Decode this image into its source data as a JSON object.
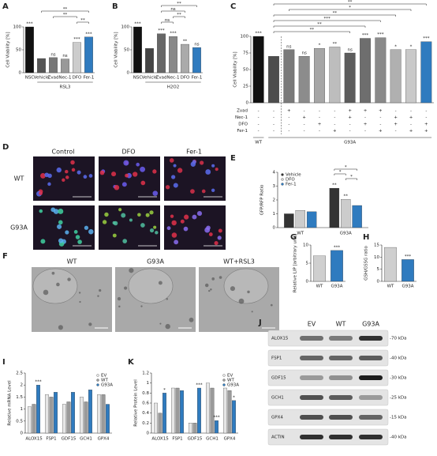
{
  "chart_data": [
    {
      "type": "bar",
      "panel": "A",
      "ylabel": "Cell Viability [%]",
      "categories": [
        "NSC",
        "Vehicle",
        "Zvad",
        "Nec-1",
        "DFO",
        "Fer-1"
      ],
      "values": [
        100,
        31,
        33,
        30,
        66,
        78
      ],
      "colors": [
        "#111111",
        "#555555",
        "#777777",
        "#999999",
        "#cccccc",
        "#2f7bbf"
      ],
      "sig": [
        "***",
        null,
        "ns",
        "ns",
        "***",
        "***"
      ],
      "ylim": [
        0,
        100
      ],
      "yticks": [
        0,
        50,
        100
      ],
      "group_labels": [
        {
          "label": "RSL3",
          "span": [
            1,
            5
          ]
        }
      ],
      "comparisons": [
        {
          "pair": [
            4,
            5
          ],
          "label": "**"
        },
        {
          "pair": [
            2,
            4
          ],
          "label": "**"
        },
        {
          "pair": [
            1,
            5
          ],
          "label": "**"
        }
      ]
    },
    {
      "type": "bar",
      "panel": "B",
      "ylabel": "Cell Viability [%]",
      "categories": [
        "NSC",
        "Vehicle",
        "Zvad",
        "Nec-1",
        "DFO",
        "Fer-1"
      ],
      "values": [
        100,
        53,
        85,
        79,
        62,
        55
      ],
      "colors": [
        "#111111",
        "#444444",
        "#666666",
        "#888888",
        "#aaaaaa",
        "#2f7bbf"
      ],
      "sig": [
        "***",
        null,
        "***",
        "***",
        "**",
        "ns"
      ],
      "ylim": [
        0,
        100
      ],
      "yticks": [
        0,
        50,
        100
      ],
      "group_labels": [
        {
          "label": "H2O2",
          "span": [
            1,
            5
          ]
        }
      ],
      "comparisons": [
        {
          "pair": [
            2,
            3
          ],
          "label": "ns"
        },
        {
          "pair": [
            3,
            4
          ],
          "label": "**"
        },
        {
          "pair": [
            2,
            4
          ],
          "label": "ns"
        },
        {
          "pair": [
            2,
            5
          ],
          "label": "**"
        }
      ]
    },
    {
      "type": "bar",
      "panel": "C",
      "ylabel": "Cell Viability [%]",
      "categories": [
        null,
        null,
        null,
        null,
        null,
        null,
        null,
        null,
        null,
        null,
        null,
        null
      ],
      "values": [
        100,
        70,
        80,
        70,
        82,
        84,
        75,
        97,
        98,
        80,
        80,
        92
      ],
      "colors": [
        "#111111",
        "#4d4d4d",
        "#7a7a7a",
        "#8c8c8c",
        "#a6a6a6",
        "#bdbdbd",
        "#5c5c5c",
        "#6e6e6e",
        "#8a8a8a",
        "#b0b0b0",
        "#c9c9c9",
        "#2f7bbf"
      ],
      "sig": [
        "***",
        null,
        "ns",
        "ns",
        "*",
        "**",
        "ns",
        "***",
        "***",
        "*",
        "*",
        "***"
      ],
      "ylim": [
        0,
        100
      ],
      "yticks": [
        0,
        25,
        50,
        75,
        100
      ],
      "conditions": [
        {
          "name": "Zvad",
          "signs": [
            "-",
            "-",
            "+",
            "-",
            "-",
            "-",
            "+",
            "+",
            "+",
            "-",
            "-",
            "-"
          ]
        },
        {
          "name": "Nec-1",
          "signs": [
            "-",
            "-",
            "-",
            "+",
            "-",
            "-",
            "+",
            "-",
            "-",
            "+",
            "+",
            "-"
          ]
        },
        {
          "name": "DFO",
          "signs": [
            "-",
            "-",
            "-",
            "-",
            "+",
            "-",
            "-",
            "+",
            "-",
            "+",
            "-",
            "+"
          ]
        },
        {
          "name": "Fer-1",
          "signs": [
            "-",
            "-",
            "-",
            "-",
            "-",
            "+",
            "-",
            "-",
            "+",
            "-",
            "+",
            "+"
          ]
        }
      ],
      "group_labels": [
        {
          "label": "WT",
          "span": [
            0,
            0
          ]
        },
        {
          "label": "G93A",
          "span": [
            1,
            11
          ]
        }
      ],
      "comparisons": [
        {
          "pair": [
            1,
            6
          ],
          "label": "**"
        },
        {
          "pair": [
            1,
            7
          ],
          "label": "**"
        },
        {
          "pair": [
            1,
            8
          ],
          "label": "***"
        },
        {
          "pair": [
            1,
            9
          ],
          "label": "**"
        },
        {
          "pair": [
            2,
            10
          ],
          "label": "*"
        },
        {
          "pair": [
            1,
            11
          ],
          "label": "**"
        }
      ]
    },
    {
      "type": "grouped_bar",
      "panel": "E",
      "ylabel": "GFP/RFP Ratio",
      "categories": [
        "WT",
        "G93A"
      ],
      "series": [
        {
          "name": "Vehicle",
          "color": "#333333",
          "values": [
            1.0,
            2.85
          ],
          "sig": [
            null,
            "**"
          ]
        },
        {
          "name": "DFO",
          "color": "#cccccc",
          "values": [
            1.25,
            2.05
          ],
          "sig": [
            null,
            "**"
          ]
        },
        {
          "name": "Fer-1",
          "color": "#2f7bbf",
          "values": [
            1.15,
            1.6
          ],
          "sig": [
            null,
            null
          ]
        }
      ],
      "ylim": [
        0,
        4
      ],
      "yticks": [
        0,
        1,
        2,
        3,
        4
      ],
      "legend": "upper left",
      "comparisons": [
        {
          "category": 1,
          "pair": [
            1,
            2
          ],
          "label": "*"
        },
        {
          "category": 1,
          "pair": [
            0,
            1
          ],
          "label": "*"
        },
        {
          "category": 1,
          "pair": [
            0,
            2
          ],
          "label": "*"
        }
      ]
    },
    {
      "type": "bar",
      "panel": "G",
      "ylabel": "Relative LIP [arbitrary unit]",
      "categories": [
        "WT",
        "G93A"
      ],
      "values": [
        7,
        8.5
      ],
      "colors": [
        "#cfcfcf",
        "#2f7bbf"
      ],
      "sig": [
        null,
        "***"
      ],
      "ylim": [
        0,
        10
      ],
      "yticks": [
        0,
        5,
        10
      ]
    },
    {
      "type": "bar",
      "panel": "H",
      "ylabel": "GSH/GSSG ratio",
      "categories": [
        "WT",
        "G93A"
      ],
      "values": [
        14,
        9
      ],
      "colors": [
        "#cfcfcf",
        "#2f7bbf"
      ],
      "sig": [
        null,
        "***"
      ],
      "ylim": [
        0,
        15
      ],
      "yticks": [
        0,
        5,
        10,
        15
      ]
    },
    {
      "type": "grouped_bar",
      "panel": "I",
      "ylabel": "Relative mRNA Level",
      "categories": [
        "ALOX15",
        "FSP1",
        "GDF15",
        "GCH1",
        "GPX4"
      ],
      "series": [
        {
          "name": "EV",
          "color": "#e6e6e6",
          "values": [
            1.1,
            1.6,
            1.2,
            1.5,
            1.6
          ]
        },
        {
          "name": "WT",
          "color": "#9a9a9a",
          "values": [
            1.2,
            1.5,
            1.3,
            1.3,
            1.6
          ]
        },
        {
          "name": "G93A",
          "color": "#2f7bbf",
          "values": [
            2.0,
            1.7,
            1.7,
            1.8,
            1.2
          ],
          "sig": [
            "***",
            null,
            null,
            null,
            null
          ]
        }
      ],
      "ylim": [
        0,
        2.5
      ],
      "yticks": [
        0,
        0.5,
        1,
        1.5,
        2,
        2.5
      ],
      "legend": "upper right"
    },
    {
      "type": "grouped_bar",
      "panel": "K",
      "ylabel": "Relative Protein Level",
      "categories": [
        "ALOX15",
        "FSP1",
        "GDF15",
        "GCH1",
        "GPX4"
      ],
      "series": [
        {
          "name": "EV",
          "color": "#e6e6e6",
          "values": [
            0.6,
            0.9,
            0.2,
            1.0,
            0.9
          ]
        },
        {
          "name": "WT",
          "color": "#9a9a9a",
          "values": [
            0.4,
            0.9,
            0.2,
            0.9,
            0.85
          ]
        },
        {
          "name": "G93A",
          "color": "#2f7bbf",
          "values": [
            0.8,
            0.85,
            0.9,
            0.25,
            0.65
          ],
          "sig": [
            "*",
            null,
            "***",
            "***",
            "*"
          ]
        }
      ],
      "ylim": [
        0,
        1.2
      ],
      "yticks": [
        0,
        0.2,
        0.4,
        0.6,
        0.8,
        1,
        1.2
      ],
      "legend": "upper right"
    }
  ],
  "micrographs": {
    "panel": "D",
    "columns": [
      "Control",
      "DFO",
      "Fer-1"
    ],
    "rows": [
      "WT",
      "G93A"
    ]
  },
  "electron_micrographs": {
    "panel": "F",
    "columns": [
      "WT",
      "G93A",
      "WT+RSL3"
    ]
  },
  "blot": {
    "panel": "J",
    "columns": [
      "EV",
      "WT",
      "G93A"
    ],
    "rows": [
      {
        "protein": "ALOX15",
        "size": "-70 kDa"
      },
      {
        "protein": "FSP1",
        "size": "-40 kDa"
      },
      {
        "protein": "GDF15",
        "size": "-30 kDa"
      },
      {
        "protein": "GCH1",
        "size": "-25 kDa"
      },
      {
        "protein": "GPX4",
        "size": "-15 kDa"
      },
      {
        "protein": "ACTIN",
        "size": "-40 kDa"
      }
    ]
  }
}
